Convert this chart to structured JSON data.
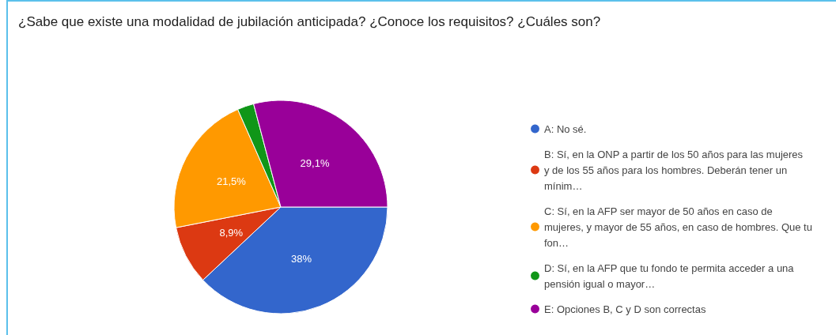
{
  "chart_data": {
    "type": "pie",
    "title": "¿Sabe que existe una modalidad de jubilación anticipada? ¿Conoce los requisitos? ¿Cuáles son?",
    "categories": [
      "A: No sé.",
      "B: Sí, en la ONP a partir de los 50 años para las mujeres y de los 55 años para los hombres. Deberán tener un mínim…",
      "C: Sí, en la AFP ser mayor de 50 años en caso de mujeres, y mayor de 55 años, en caso de hombres. Que tu fon…",
      "D: Sí, en la AFP que tu fondo te permita acceder a una pensión igual o mayor…",
      "E: Opciones B, C y D son correctas"
    ],
    "values": [
      38,
      8.9,
      21.5,
      2.5,
      29.1
    ],
    "value_labels": [
      "38%",
      "8,9%",
      "21,5%",
      null,
      "29,1%"
    ],
    "colors": [
      "#3366cc",
      "#dc3912",
      "#ff9900",
      "#109618",
      "#990099"
    ],
    "legend": "right"
  }
}
